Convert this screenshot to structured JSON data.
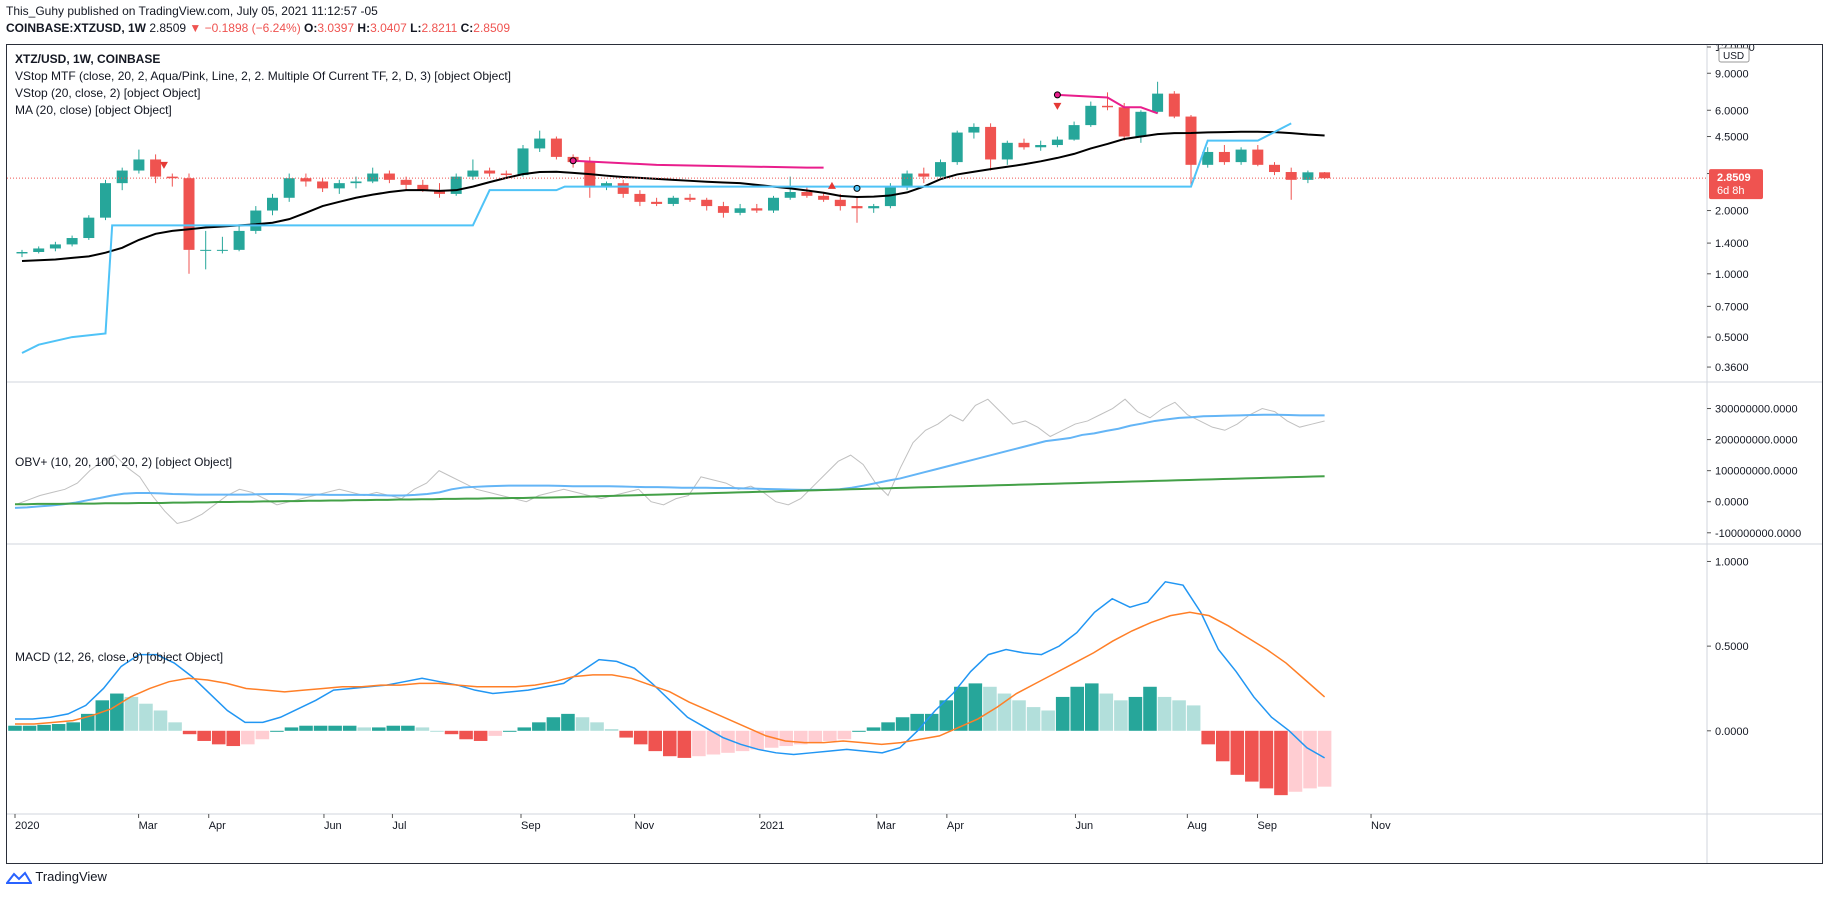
{
  "header": {
    "line1": "This_Guhy published on TradingView.com, July 05, 2021 11:12:57 -05",
    "symbol": "COINBASE:XTZUSD, 1W",
    "last": "2.8509",
    "change": "▼ −0.1898 (−6.24%)",
    "o_label": "O:",
    "o_val": "3.0397",
    "h_label": "H:",
    "h_val": "3.0407",
    "l_label": "L:",
    "l_val": "2.8211",
    "c_label": "C:",
    "c_val": "2.8509"
  },
  "legend": {
    "title": "XTZ/USD, 1W, COINBASE",
    "vstop_mtf": "VStop MTF (close, 20, 2, Aqua/Pink, Line, 2, 2. Multiple Of Current TF, 2, D, 3) [object Object]",
    "vstop": "VStop (20, close, 2) [object Object]",
    "ma": "MA (20, close) [object Object]",
    "obv": "OBV+ (10, 20, 100, 20, 2) [object Object]",
    "macd": "MACD (12, 26, close, 9) [object Object]"
  },
  "price_badge": {
    "price": "2.8509",
    "countdown": "6d 8h",
    "color": "#ef5350"
  },
  "currency_label": "USD",
  "footer": {
    "brand": "TradingView"
  },
  "colors": {
    "up": "#26a69a",
    "down": "#ef5350",
    "ma": "#000000",
    "aqua": "#4fc3f7",
    "pink": "#e91e8c",
    "obv": "#c0c0c0",
    "obv_fast": "#64b5f6",
    "obv_slow": "#43a047",
    "macd": "#2196f3",
    "signal": "#ff7f27"
  },
  "chart_data": [
    {
      "type": "candlestick",
      "title": "XTZ/USD, 1W, COINBASE",
      "scale": "log",
      "y_ticks": [
        "12.0000",
        "9.0000",
        "6.0000",
        "4.5000",
        "3.0000",
        "2.0000",
        "1.4000",
        "1.0000",
        "0.7000",
        "0.5000",
        "0.3600"
      ],
      "x_ticks": [
        "2020",
        "Mar",
        "Apr",
        "Jun",
        "Jul",
        "Sep",
        "Nov",
        "2021",
        "Mar",
        "Apr",
        "Jun",
        "Aug",
        "Sep",
        "Nov"
      ],
      "ohlc": [
        [
          1.25,
          1.3,
          1.2,
          1.27
        ],
        [
          1.27,
          1.35,
          1.25,
          1.32
        ],
        [
          1.32,
          1.42,
          1.28,
          1.38
        ],
        [
          1.38,
          1.52,
          1.35,
          1.48
        ],
        [
          1.48,
          1.9,
          1.45,
          1.85
        ],
        [
          1.85,
          2.8,
          1.8,
          2.7
        ],
        [
          2.7,
          3.2,
          2.5,
          3.1
        ],
        [
          3.1,
          3.9,
          3.0,
          3.5
        ],
        [
          3.5,
          3.7,
          2.7,
          2.9
        ],
        [
          2.9,
          3.0,
          2.6,
          2.85
        ],
        [
          2.85,
          3.0,
          1.0,
          1.3
        ],
        [
          1.3,
          1.6,
          1.05,
          1.3
        ],
        [
          1.3,
          1.5,
          1.25,
          1.3
        ],
        [
          1.3,
          1.7,
          1.28,
          1.6
        ],
        [
          1.6,
          2.1,
          1.55,
          2.0
        ],
        [
          2.0,
          2.4,
          1.9,
          2.3
        ],
        [
          2.3,
          3.0,
          2.2,
          2.85
        ],
        [
          2.85,
          3.0,
          2.6,
          2.75
        ],
        [
          2.75,
          2.85,
          2.45,
          2.55
        ],
        [
          2.55,
          2.8,
          2.4,
          2.7
        ],
        [
          2.7,
          2.9,
          2.55,
          2.75
        ],
        [
          2.75,
          3.2,
          2.7,
          3.0
        ],
        [
          3.0,
          3.1,
          2.7,
          2.8
        ],
        [
          2.8,
          2.9,
          2.5,
          2.65
        ],
        [
          2.65,
          2.8,
          2.45,
          2.5
        ],
        [
          2.5,
          2.7,
          2.3,
          2.4
        ],
        [
          2.4,
          3.0,
          2.35,
          2.9
        ],
        [
          2.9,
          3.5,
          2.8,
          3.1
        ],
        [
          3.1,
          3.2,
          2.9,
          3.0
        ],
        [
          3.0,
          3.1,
          2.85,
          2.95
        ],
        [
          2.95,
          4.1,
          2.9,
          3.95
        ],
        [
          3.95,
          4.8,
          3.8,
          4.4
        ],
        [
          4.4,
          4.5,
          3.5,
          3.6
        ],
        [
          3.6,
          3.7,
          3.2,
          3.4
        ],
        [
          3.4,
          3.6,
          2.3,
          2.6
        ],
        [
          2.6,
          2.75,
          2.5,
          2.7
        ],
        [
          2.7,
          2.8,
          2.3,
          2.4
        ],
        [
          2.4,
          2.5,
          2.1,
          2.2
        ],
        [
          2.2,
          2.3,
          2.1,
          2.15
        ],
        [
          2.15,
          2.35,
          2.1,
          2.3
        ],
        [
          2.3,
          2.4,
          2.2,
          2.25
        ],
        [
          2.25,
          2.3,
          2.0,
          2.1
        ],
        [
          2.1,
          2.2,
          1.85,
          1.95
        ],
        [
          1.95,
          2.15,
          1.9,
          2.05
        ],
        [
          2.05,
          2.15,
          1.95,
          2.0
        ],
        [
          2.0,
          2.35,
          1.95,
          2.3
        ],
        [
          2.3,
          2.9,
          2.25,
          2.45
        ],
        [
          2.45,
          2.6,
          2.3,
          2.35
        ],
        [
          2.35,
          2.45,
          2.2,
          2.25
        ],
        [
          2.25,
          2.4,
          2.0,
          2.1
        ],
        [
          2.1,
          2.3,
          1.75,
          2.05
        ],
        [
          2.05,
          2.15,
          1.95,
          2.1
        ],
        [
          2.1,
          2.7,
          2.05,
          2.6
        ],
        [
          2.6,
          3.1,
          2.5,
          3.0
        ],
        [
          3.0,
          3.2,
          2.7,
          2.9
        ],
        [
          2.9,
          3.5,
          2.85,
          3.4
        ],
        [
          3.4,
          4.8,
          3.3,
          4.7
        ],
        [
          4.7,
          5.2,
          4.4,
          5.0
        ],
        [
          5.0,
          5.2,
          3.1,
          3.5
        ],
        [
          3.5,
          4.3,
          3.3,
          4.2
        ],
        [
          4.2,
          4.4,
          3.9,
          4.0
        ],
        [
          4.0,
          4.3,
          3.85,
          4.1
        ],
        [
          4.1,
          4.5,
          4.0,
          4.35
        ],
        [
          4.35,
          5.3,
          4.3,
          5.1
        ],
        [
          5.1,
          6.6,
          5.0,
          6.3
        ],
        [
          6.3,
          7.3,
          6.0,
          6.2
        ],
        [
          6.2,
          6.5,
          4.3,
          4.5
        ],
        [
          4.5,
          6.0,
          4.2,
          5.9
        ],
        [
          5.9,
          8.2,
          5.8,
          7.2
        ],
        [
          7.2,
          7.4,
          5.5,
          5.6
        ],
        [
          5.6,
          5.7,
          2.6,
          3.3
        ],
        [
          3.3,
          4.0,
          3.2,
          3.8
        ],
        [
          3.8,
          4.1,
          3.3,
          3.4
        ],
        [
          3.4,
          4.0,
          3.3,
          3.9
        ],
        [
          3.9,
          4.1,
          3.25,
          3.3
        ],
        [
          3.3,
          3.4,
          2.95,
          3.05
        ],
        [
          3.05,
          3.2,
          2.25,
          2.8
        ],
        [
          2.8,
          3.1,
          2.7,
          3.04
        ],
        [
          3.04,
          3.05,
          2.82,
          2.85
        ]
      ],
      "series": [
        {
          "name": "MA (20, close)",
          "values": [
            1.15,
            1.16,
            1.17,
            1.19,
            1.21,
            1.26,
            1.33,
            1.45,
            1.55,
            1.6,
            1.63,
            1.66,
            1.68,
            1.7,
            1.72,
            1.75,
            1.82,
            1.95,
            2.1,
            2.2,
            2.3,
            2.38,
            2.45,
            2.5,
            2.5,
            2.48,
            2.5,
            2.6,
            2.73,
            2.86,
            2.98,
            3.05,
            3.06,
            3.02,
            2.98,
            2.93,
            2.89,
            2.86,
            2.83,
            2.8,
            2.77,
            2.74,
            2.72,
            2.7,
            2.65,
            2.6,
            2.55,
            2.49,
            2.43,
            2.35,
            2.32,
            2.33,
            2.36,
            2.44,
            2.6,
            2.82,
            2.97,
            3.06,
            3.15,
            3.23,
            3.32,
            3.43,
            3.56,
            3.72,
            3.95,
            4.15,
            4.38,
            4.5,
            4.62,
            4.67,
            4.68,
            4.71,
            4.72,
            4.74,
            4.74,
            4.72,
            4.67,
            4.6,
            4.55
          ]
        }
      ]
    },
    {
      "type": "line",
      "title": "OBV+ (10, 20, 100, 20, 2)",
      "y_ticks": [
        "300000000.0000",
        "200000000.0000",
        "100000000.0000",
        "0.0000",
        "-100000000.0000"
      ],
      "series": [
        {
          "values": [
            -10,
            5,
            20,
            30,
            40,
            60,
            100,
            130,
            150,
            110,
            80,
            20,
            -30,
            -70,
            -60,
            -40,
            -10,
            20,
            40,
            30,
            10,
            -10,
            0,
            10,
            20,
            30,
            40,
            30,
            20,
            30,
            20,
            10,
            40,
            60,
            100,
            80,
            60,
            40,
            30,
            20,
            10,
            0,
            20,
            30,
            40,
            30,
            20,
            10,
            20,
            30,
            40,
            0,
            -10,
            10,
            20,
            80,
            70,
            60,
            40,
            50,
            30,
            0,
            -10,
            10,
            50,
            90,
            130,
            150,
            120,
            60,
            20,
            110,
            190,
            230,
            250,
            280,
            260,
            310,
            330,
            290,
            250,
            260,
            240,
            210,
            230,
            250,
            260,
            280,
            300,
            330,
            290,
            270,
            300,
            320,
            280,
            260,
            240,
            230,
            250,
            280,
            300,
            290,
            260,
            240,
            250,
            260
          ]
        },
        {
          "values": [
            -20,
            -18,
            -15,
            -12,
            -8,
            -3,
            5,
            12,
            20,
            26,
            28,
            28,
            27,
            25,
            24,
            23,
            23,
            23,
            23,
            23,
            24,
            25,
            25,
            24,
            23,
            23,
            22,
            22,
            22,
            22,
            21,
            20,
            20,
            22,
            25,
            30,
            40,
            46,
            48,
            50,
            51,
            52,
            52,
            52,
            52,
            51,
            50,
            50,
            50,
            50,
            49,
            48,
            47,
            47,
            46,
            45,
            45,
            45,
            44,
            44,
            43,
            42,
            41,
            40,
            39,
            38,
            38,
            38,
            40,
            45,
            52,
            60,
            68,
            75,
            85,
            95,
            105,
            115,
            125,
            135,
            145,
            155,
            165,
            175,
            185,
            195,
            200,
            205,
            215,
            220,
            228,
            235,
            245,
            252,
            260,
            265,
            270,
            272,
            275,
            276,
            277,
            278,
            279,
            280,
            280,
            279,
            278,
            278,
            278
          ]
        },
        {
          "values": [
            -8,
            -8,
            -7,
            -7,
            -7,
            -6,
            -6,
            -6,
            -5,
            -5,
            -5,
            -4,
            -4,
            -4,
            -3,
            -3,
            -2,
            -2,
            -1,
            -1,
            0,
            0,
            1,
            1,
            2,
            2,
            3,
            3,
            4,
            4,
            5,
            5,
            6,
            6,
            7,
            7,
            8,
            8,
            9,
            9,
            10,
            10,
            11,
            11,
            12,
            12,
            13,
            13,
            14,
            15,
            16,
            17,
            18,
            19,
            20,
            21,
            22,
            23,
            24,
            25,
            26,
            27,
            28,
            29,
            30,
            31,
            32,
            33,
            34,
            35,
            36,
            37,
            38,
            39,
            40,
            41,
            42,
            43,
            44,
            45,
            46,
            47,
            48,
            49,
            50,
            51,
            52,
            53,
            54,
            55,
            56,
            57,
            58,
            59,
            60,
            61,
            62,
            63,
            64,
            65,
            66,
            67,
            68,
            69,
            70,
            71,
            72,
            73,
            74,
            75,
            76,
            77,
            78,
            79,
            80,
            81,
            82
          ]
        }
      ]
    },
    {
      "type": "bar+line",
      "title": "MACD (12, 26, close, 9)",
      "y_ticks": [
        "1.0000",
        "0.5000",
        "0.0000"
      ],
      "histogram": [
        0.03,
        0.03,
        0.035,
        0.04,
        0.05,
        0.1,
        0.18,
        0.22,
        0.2,
        0.16,
        0.12,
        0.05,
        -0.02,
        -0.06,
        -0.08,
        -0.09,
        -0.08,
        -0.05,
        0.0,
        0.02,
        0.03,
        0.03,
        0.03,
        0.03,
        0.02,
        0.02,
        0.03,
        0.03,
        0.02,
        0.0,
        -0.02,
        -0.05,
        -0.06,
        -0.03,
        0.0,
        0.02,
        0.05,
        0.08,
        0.1,
        0.08,
        0.05,
        0.01,
        -0.04,
        -0.08,
        -0.12,
        -0.15,
        -0.16,
        -0.15,
        -0.14,
        -0.13,
        -0.12,
        -0.11,
        -0.1,
        -0.09,
        -0.08,
        -0.07,
        -0.06,
        -0.05,
        0.0,
        0.02,
        0.05,
        0.08,
        0.1,
        0.1,
        0.18,
        0.26,
        0.28,
        0.26,
        0.22,
        0.18,
        0.14,
        0.12,
        0.2,
        0.26,
        0.28,
        0.22,
        0.18,
        0.2,
        0.26,
        0.2,
        0.18,
        0.15,
        -0.08,
        -0.18,
        -0.26,
        -0.3,
        -0.34,
        -0.38,
        -0.36,
        -0.34,
        -0.33
      ],
      "series": [
        {
          "name": "MACD",
          "values": [
            0.07,
            0.07,
            0.08,
            0.1,
            0.15,
            0.25,
            0.38,
            0.45,
            0.45,
            0.4,
            0.32,
            0.22,
            0.12,
            0.05,
            0.05,
            0.08,
            0.13,
            0.18,
            0.24,
            0.25,
            0.26,
            0.27,
            0.29,
            0.31,
            0.29,
            0.27,
            0.24,
            0.22,
            0.23,
            0.24,
            0.26,
            0.28,
            0.35,
            0.42,
            0.41,
            0.37,
            0.28,
            0.18,
            0.08,
            0.02,
            -0.04,
            -0.08,
            -0.11,
            -0.13,
            -0.14,
            -0.13,
            -0.12,
            -0.11,
            -0.12,
            -0.13,
            -0.1,
            0.0,
            0.12,
            0.22,
            0.35,
            0.45,
            0.48,
            0.46,
            0.45,
            0.5,
            0.58,
            0.7,
            0.78,
            0.73,
            0.76,
            0.88,
            0.86,
            0.7,
            0.48,
            0.35,
            0.2,
            0.08,
            0.0,
            -0.1,
            -0.16
          ]
        },
        {
          "name": "Signal",
          "values": [
            0.04,
            0.04,
            0.05,
            0.06,
            0.09,
            0.13,
            0.2,
            0.25,
            0.29,
            0.31,
            0.3,
            0.28,
            0.25,
            0.24,
            0.23,
            0.24,
            0.25,
            0.26,
            0.26,
            0.27,
            0.27,
            0.28,
            0.28,
            0.27,
            0.26,
            0.26,
            0.26,
            0.27,
            0.29,
            0.32,
            0.33,
            0.33,
            0.31,
            0.27,
            0.23,
            0.17,
            0.12,
            0.07,
            0.02,
            -0.03,
            -0.06,
            -0.07,
            -0.07,
            -0.06,
            -0.07,
            -0.08,
            -0.07,
            -0.05,
            -0.03,
            0.02,
            0.07,
            0.14,
            0.22,
            0.28,
            0.34,
            0.4,
            0.46,
            0.53,
            0.59,
            0.64,
            0.68,
            0.7,
            0.68,
            0.62,
            0.55,
            0.48,
            0.4,
            0.3,
            0.2
          ]
        }
      ]
    }
  ]
}
